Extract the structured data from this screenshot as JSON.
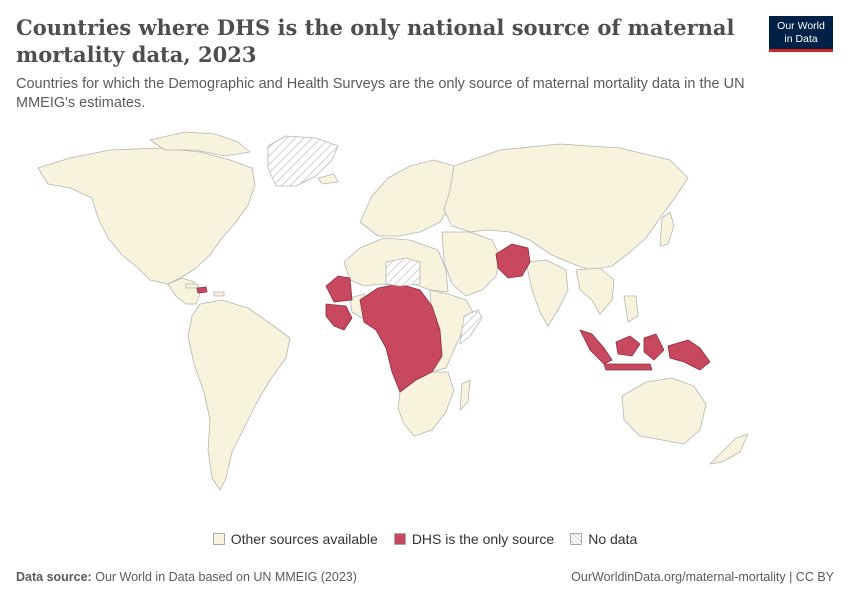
{
  "header": {
    "title": "Countries where DHS is the only national source of maternal mortality data, 2023",
    "subtitle": "Countries for which the Demographic and Health Surveys are the only source of maternal mortality data in the UN MMEIG's estimates."
  },
  "logo": {
    "line1": "Our World",
    "line2": "in Data"
  },
  "colors": {
    "other": "#f8f3dc",
    "dhs": "#c8485f",
    "nodata": "#eeeeee",
    "border": "#a8a8a8",
    "ocean": "#ffffff"
  },
  "legend": [
    {
      "key": "other",
      "label": "Other sources available"
    },
    {
      "key": "dhs",
      "label": "DHS is the only source"
    },
    {
      "key": "nodata",
      "label": "No data"
    }
  ],
  "map_data": {
    "categories": [
      "Other sources available",
      "DHS is the only source",
      "No data"
    ],
    "dhs_only_regions": [
      "Haiti",
      "Mauritania",
      "Senegal",
      "Guinea",
      "Liberia",
      "Ghana",
      "Togo",
      "Benin",
      "Nigeria",
      "Niger",
      "Chad",
      "Cameroon",
      "Central African Republic",
      "Congo",
      "Democratic Republic of Congo",
      "Gabon",
      "Burundi",
      "Rwanda",
      "Angola",
      "Afghanistan",
      "Pakistan",
      "Indonesia",
      "Papua New Guinea",
      "Timor"
    ],
    "no_data_regions": [
      "Greenland",
      "Libya",
      "Somalia"
    ]
  },
  "footer": {
    "source_label": "Data source:",
    "source_text": "Our World in Data based on UN MMEIG (2023)",
    "url_text": "OurWorldinData.org/maternal-mortality | CC BY"
  }
}
